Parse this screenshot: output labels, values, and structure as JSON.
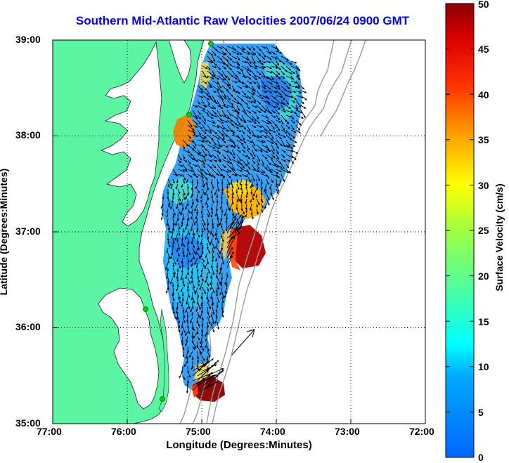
{
  "title": "Southern Mid-Atlantic Raw Velocities 2007/06/24 0900 GMT",
  "xlabel": "Longitude (Degrees:Minutes)",
  "ylabel": "Latitude (Degrees:Minutes)",
  "x_ticks": [
    "77:00",
    "76:00",
    "75:00",
    "74:00",
    "73:00",
    "72:00"
  ],
  "y_ticks": [
    "39:00",
    "38:00",
    "37:00",
    "36:00",
    "35:00"
  ],
  "colorbar": {
    "label": "Surface Velocity (cm/s)",
    "ticks": [
      "0",
      "5",
      "10",
      "15",
      "20",
      "25",
      "30",
      "35",
      "40",
      "45",
      "50"
    ],
    "range": [
      0,
      50
    ]
  },
  "colors": {
    "land": "#5cf5a3",
    "water": "#ffffff",
    "title": "#0000ee",
    "bathymetry": "#9a9a9a",
    "station": "#00d000"
  },
  "map": {
    "lon_range": [
      -77,
      -72
    ],
    "lat_range": [
      35,
      39
    ]
  }
}
